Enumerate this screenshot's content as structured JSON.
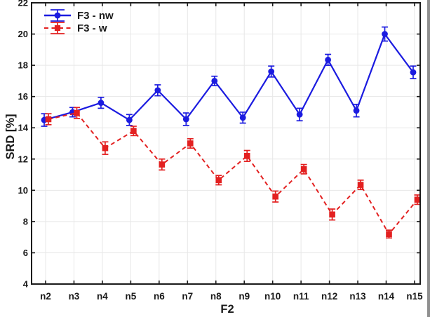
{
  "chart_data": {
    "type": "line",
    "title": "",
    "xlabel": "F2",
    "ylabel": "SRD [%]",
    "ylim": [
      4,
      22
    ],
    "ytick_step": 2,
    "grid": true,
    "legend_position": "top-left-inside",
    "frame_color": "#1a1a1a",
    "grid_color": "#e7e7e7",
    "categories": [
      "n2",
      "n3",
      "n4",
      "n5",
      "n6",
      "n7",
      "n8",
      "n9",
      "n10",
      "n11",
      "n12",
      "n13",
      "n14",
      "n15"
    ],
    "series": [
      {
        "name": "F3 - nw",
        "color": "#1b1be0",
        "linestyle": "solid",
        "marker": "circle",
        "values": [
          14.5,
          15.0,
          15.6,
          14.5,
          16.4,
          14.55,
          17.0,
          14.65,
          17.6,
          14.85,
          18.35,
          15.1,
          20.0,
          17.55
        ],
        "errors": [
          0.4,
          0.3,
          0.35,
          0.35,
          0.35,
          0.4,
          0.3,
          0.35,
          0.35,
          0.4,
          0.35,
          0.4,
          0.45,
          0.4
        ]
      },
      {
        "name": "F3 - w",
        "color": "#e32020",
        "linestyle": "dashed",
        "marker": "square",
        "values": [
          14.55,
          14.95,
          12.7,
          13.8,
          11.65,
          13.0,
          10.65,
          12.2,
          9.6,
          11.35,
          8.45,
          10.35,
          7.2,
          9.4
        ],
        "errors": [
          0.35,
          0.35,
          0.4,
          0.3,
          0.35,
          0.3,
          0.3,
          0.35,
          0.35,
          0.3,
          0.35,
          0.3,
          0.25,
          0.3
        ]
      }
    ]
  }
}
